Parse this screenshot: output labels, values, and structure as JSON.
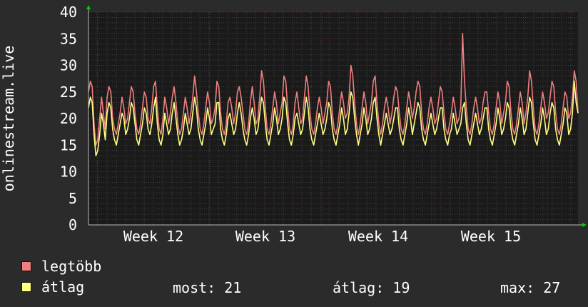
{
  "chart_data": {
    "type": "line",
    "ylabel": "onlinestream.live",
    "ylim": [
      0,
      40
    ],
    "yticks": [
      0,
      5,
      10,
      15,
      20,
      25,
      30,
      35,
      40
    ],
    "x_tick_labels": [
      "Week 12",
      "Week 13",
      "Week 14",
      "Week 15"
    ],
    "grid": true,
    "background": "#1a1a1a",
    "series": [
      {
        "name": "legtöbb",
        "color": "#f07f7f",
        "values": [
          25,
          27,
          26,
          19,
          15,
          16,
          20,
          24,
          21,
          18,
          24,
          26,
          25,
          20,
          18,
          17,
          19,
          21,
          24,
          22,
          19,
          20,
          23,
          26,
          25,
          21,
          18,
          17,
          19,
          22,
          25,
          24,
          20,
          19,
          22,
          26,
          27,
          22,
          18,
          17,
          20,
          24,
          22,
          19,
          21,
          24,
          26,
          23,
          19,
          17,
          18,
          21,
          24,
          22,
          19,
          21,
          24,
          28,
          25,
          21,
          18,
          17,
          19,
          22,
          25,
          23,
          19,
          20,
          22,
          27,
          26,
          21,
          18,
          17,
          19,
          23,
          24,
          22,
          19,
          21,
          25,
          26,
          24,
          21,
          18,
          17,
          19,
          23,
          26,
          23,
          19,
          20,
          24,
          29,
          27,
          22,
          18,
          17,
          19,
          22,
          25,
          23,
          19,
          21,
          23,
          28,
          27,
          22,
          18,
          17,
          19,
          23,
          25,
          22,
          19,
          20,
          24,
          28,
          26,
          21,
          18,
          17,
          19,
          22,
          24,
          22,
          19,
          21,
          23,
          27,
          26,
          21,
          18,
          17,
          19,
          22,
          25,
          23,
          20,
          21,
          24,
          30,
          28,
          23,
          19,
          17,
          19,
          22,
          25,
          23,
          19,
          21,
          23,
          27,
          28,
          23,
          19,
          17,
          19,
          22,
          24,
          22,
          19,
          21,
          24,
          26,
          25,
          21,
          18,
          17,
          19,
          22,
          25,
          23,
          20,
          22,
          25,
          27,
          26,
          21,
          18,
          17,
          19,
          22,
          24,
          22,
          19,
          20,
          23,
          26,
          25,
          21,
          18,
          17,
          19,
          21,
          24,
          22,
          19,
          20,
          22,
          36,
          27,
          22,
          18,
          17,
          19,
          22,
          24,
          22,
          19,
          20,
          23,
          25,
          25,
          21,
          18,
          17,
          19,
          22,
          25,
          23,
          19,
          21,
          23,
          27,
          26,
          21,
          18,
          17,
          19,
          22,
          25,
          23,
          19,
          21,
          24,
          29,
          27,
          22,
          18,
          17,
          19,
          22,
          25,
          23,
          20,
          21,
          24,
          27,
          26,
          21,
          18,
          17,
          19,
          22,
          25,
          24,
          20,
          21,
          24,
          29,
          27,
          21
        ]
      },
      {
        "name": "átlag",
        "color": "#ffff80",
        "values": [
          22,
          24,
          23,
          17,
          13,
          14,
          17,
          21,
          19,
          16,
          21,
          23,
          22,
          18,
          16,
          15,
          17,
          19,
          21,
          20,
          17,
          18,
          20,
          23,
          22,
          19,
          16,
          15,
          17,
          19,
          22,
          21,
          18,
          17,
          19,
          22,
          24,
          19,
          16,
          15,
          17,
          21,
          19,
          17,
          18,
          21,
          23,
          20,
          17,
          15,
          16,
          18,
          21,
          19,
          17,
          18,
          21,
          24,
          22,
          18,
          16,
          15,
          17,
          19,
          22,
          20,
          17,
          18,
          19,
          23,
          23,
          18,
          16,
          15,
          17,
          20,
          21,
          19,
          17,
          18,
          21,
          23,
          21,
          18,
          16,
          15,
          17,
          20,
          22,
          20,
          17,
          18,
          21,
          24,
          23,
          19,
          16,
          15,
          17,
          19,
          22,
          20,
          17,
          18,
          20,
          24,
          23,
          19,
          16,
          15,
          17,
          20,
          21,
          19,
          17,
          18,
          21,
          24,
          22,
          18,
          16,
          15,
          17,
          19,
          21,
          19,
          17,
          18,
          20,
          23,
          22,
          18,
          16,
          15,
          17,
          19,
          22,
          20,
          17,
          18,
          21,
          25,
          24,
          20,
          17,
          15,
          17,
          19,
          22,
          20,
          17,
          18,
          20,
          23,
          24,
          20,
          17,
          15,
          17,
          19,
          21,
          19,
          17,
          18,
          20,
          22,
          22,
          18,
          16,
          15,
          17,
          19,
          22,
          20,
          17,
          19,
          21,
          23,
          22,
          18,
          16,
          15,
          17,
          19,
          21,
          19,
          17,
          18,
          20,
          22,
          22,
          18,
          16,
          15,
          17,
          18,
          21,
          19,
          17,
          18,
          19,
          22,
          23,
          19,
          16,
          15,
          17,
          19,
          21,
          19,
          17,
          18,
          20,
          22,
          22,
          18,
          16,
          15,
          17,
          19,
          22,
          20,
          17,
          18,
          20,
          23,
          22,
          18,
          16,
          15,
          17,
          19,
          22,
          20,
          17,
          18,
          21,
          24,
          23,
          19,
          16,
          15,
          17,
          19,
          22,
          20,
          17,
          18,
          21,
          23,
          22,
          18,
          16,
          15,
          17,
          19,
          22,
          21,
          17,
          18,
          21,
          27,
          23,
          21
        ]
      }
    ]
  },
  "legend": {
    "max_label": "legtöbb",
    "avg_label": "átlag",
    "max_color": "#f07f7f",
    "avg_color": "#ffff80",
    "stats": {
      "now": "most: 21",
      "avg": "átlag: 19",
      "max": "max: 27"
    }
  },
  "colors": {
    "background": "#2b2b2b",
    "plot_background": "#1a1a1a",
    "major_grid": "#5a3535",
    "minor_grid": "#3e3e3e",
    "axis_arrow": "#00cc00"
  }
}
